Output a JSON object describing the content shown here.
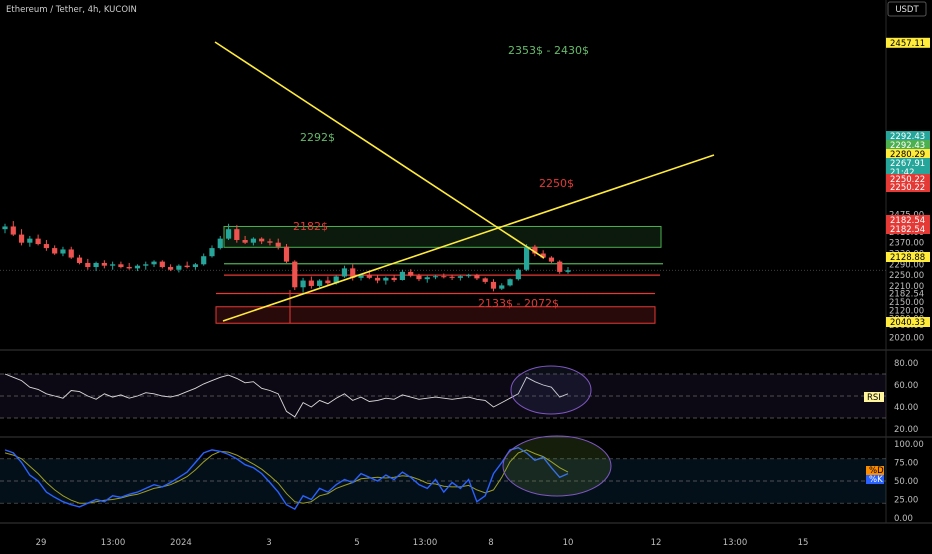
{
  "header": {
    "title": "Ethereum / Tether, 4h, KUCOIN",
    "currency_button": "USDT"
  },
  "colors": {
    "bull": "#26a69a",
    "bear": "#ef5350",
    "yellow": "#ffeb3b",
    "green_zone": "#4caf50",
    "red_zone": "#e53935",
    "rsi_line": "#d9d9d9",
    "stoch_k": "#2962ff",
    "stoch_d": "#9e9d24"
  },
  "price_axis": {
    "ticks": [
      "2475.00",
      "2410.00",
      "2370.00",
      "2330.00",
      "2290.00",
      "2250.00",
      "2210.00",
      "2182.54",
      "2150.00",
      "2120.00",
      "2090.00",
      "2066.00",
      "2020.00"
    ],
    "badges": [
      {
        "text": "2457.11",
        "bg": "#ffeb3b",
        "fg": "#000"
      },
      {
        "text": "2292.43",
        "bg": "#26a69a",
        "fg": "#fff"
      },
      {
        "text": "2292.43",
        "bg": "#4caf50",
        "fg": "#fff"
      },
      {
        "text": "2280.29",
        "bg": "#ffeb3b",
        "fg": "#000"
      },
      {
        "text": "2267.91",
        "bg": "#26a69a",
        "fg": "#fff"
      },
      {
        "text": "21:42",
        "bg": "#26a69a",
        "fg": "#fff"
      },
      {
        "text": "2250.22",
        "bg": "#e53935",
        "fg": "#fff"
      },
      {
        "text": "2250.22",
        "bg": "#e53935",
        "fg": "#fff"
      },
      {
        "text": "2182.54",
        "bg": "#e53935",
        "fg": "#fff"
      },
      {
        "text": "2182.54",
        "bg": "#e53935",
        "fg": "#fff"
      },
      {
        "text": "2128.88",
        "bg": "#ffeb3b",
        "fg": "#000"
      },
      {
        "text": "2040.33",
        "bg": "#ffeb3b",
        "fg": "#000"
      }
    ]
  },
  "annotations": {
    "supply_zone": "2353$ - 2430$",
    "demand_zone": "2133$ - 2072$",
    "level_2292": "2292$",
    "level_2250": "2250$",
    "level_2182": "2182$"
  },
  "rsi_panel": {
    "ticks": [
      "80.00",
      "60.00",
      "40.00",
      "20.00"
    ],
    "label": "RSI"
  },
  "stoch_panel": {
    "ticks": [
      "100.00",
      "75.00",
      "50.00",
      "25.00",
      "0.00"
    ],
    "label_d": "%D",
    "label_k": "%K"
  },
  "time_axis": {
    "labels": [
      "29",
      "13:00",
      "2024",
      "3",
      "5",
      "13:00",
      "8",
      "10",
      "12",
      "13:00",
      "15"
    ]
  },
  "chart_data": {
    "type": "candlestick",
    "symbol": "ETH/USDT",
    "interval": "4h",
    "exchange": "KUCOIN",
    "candles": [
      [
        2420,
        2440,
        2405,
        2430
      ],
      [
        2430,
        2450,
        2395,
        2400
      ],
      [
        2400,
        2420,
        2360,
        2370
      ],
      [
        2370,
        2395,
        2355,
        2385
      ],
      [
        2385,
        2400,
        2360,
        2365
      ],
      [
        2365,
        2380,
        2340,
        2350
      ],
      [
        2350,
        2360,
        2325,
        2330
      ],
      [
        2330,
        2355,
        2320,
        2345
      ],
      [
        2345,
        2355,
        2310,
        2315
      ],
      [
        2315,
        2325,
        2290,
        2295
      ],
      [
        2295,
        2310,
        2270,
        2280
      ],
      [
        2280,
        2300,
        2265,
        2295
      ],
      [
        2295,
        2305,
        2275,
        2285
      ],
      [
        2285,
        2300,
        2270,
        2290
      ],
      [
        2290,
        2300,
        2275,
        2280
      ],
      [
        2280,
        2295,
        2270,
        2275
      ],
      [
        2275,
        2290,
        2265,
        2285
      ],
      [
        2285,
        2300,
        2270,
        2290
      ],
      [
        2290,
        2305,
        2280,
        2300
      ],
      [
        2300,
        2305,
        2275,
        2280
      ],
      [
        2280,
        2290,
        2265,
        2270
      ],
      [
        2270,
        2290,
        2260,
        2285
      ],
      [
        2285,
        2300,
        2275,
        2280
      ],
      [
        2280,
        2295,
        2270,
        2290
      ],
      [
        2290,
        2330,
        2285,
        2320
      ],
      [
        2320,
        2360,
        2315,
        2350
      ],
      [
        2350,
        2395,
        2345,
        2385
      ],
      [
        2385,
        2440,
        2380,
        2420
      ],
      [
        2420,
        2435,
        2370,
        2380
      ],
      [
        2380,
        2395,
        2365,
        2370
      ],
      [
        2370,
        2390,
        2360,
        2385
      ],
      [
        2385,
        2390,
        2365,
        2375
      ],
      [
        2375,
        2385,
        2360,
        2370
      ],
      [
        2370,
        2385,
        2345,
        2355
      ],
      [
        2355,
        2365,
        2295,
        2300
      ],
      [
        2300,
        2305,
        2195,
        2205
      ],
      [
        2205,
        2240,
        2185,
        2230
      ],
      [
        2230,
        2245,
        2200,
        2210
      ],
      [
        2210,
        2235,
        2205,
        2230
      ],
      [
        2230,
        2245,
        2210,
        2220
      ],
      [
        2220,
        2250,
        2215,
        2245
      ],
      [
        2245,
        2285,
        2240,
        2275
      ],
      [
        2275,
        2290,
        2230,
        2240
      ],
      [
        2240,
        2255,
        2230,
        2250
      ],
      [
        2250,
        2265,
        2235,
        2240
      ],
      [
        2240,
        2250,
        2220,
        2230
      ],
      [
        2230,
        2245,
        2215,
        2240
      ],
      [
        2240,
        2250,
        2225,
        2232
      ],
      [
        2232,
        2270,
        2230,
        2262
      ],
      [
        2262,
        2272,
        2242,
        2248
      ],
      [
        2248,
        2255,
        2228,
        2235
      ],
      [
        2235,
        2248,
        2222,
        2242
      ],
      [
        2242,
        2252,
        2235,
        2246
      ],
      [
        2246,
        2256,
        2238,
        2244
      ],
      [
        2244,
        2252,
        2232,
        2240
      ],
      [
        2240,
        2250,
        2230,
        2246
      ],
      [
        2246,
        2255,
        2240,
        2250
      ],
      [
        2250,
        2255,
        2232,
        2238
      ],
      [
        2238,
        2242,
        2218,
        2225
      ],
      [
        2225,
        2235,
        2190,
        2200
      ],
      [
        2200,
        2220,
        2195,
        2212
      ],
      [
        2212,
        2238,
        2208,
        2235
      ],
      [
        2235,
        2275,
        2230,
        2270
      ],
      [
        2270,
        2365,
        2265,
        2355
      ],
      [
        2355,
        2362,
        2320,
        2330
      ],
      [
        2330,
        2342,
        2310,
        2315
      ],
      [
        2315,
        2320,
        2295,
        2300
      ],
      [
        2300,
        2305,
        2255,
        2262
      ],
      [
        2262,
        2280,
        2255,
        2268
      ]
    ],
    "horizontal_levels": [
      2292,
      2250,
      2182
    ],
    "zones": [
      {
        "label": "2353$ - 2430$",
        "low": 2353,
        "high": 2430,
        "color": "green"
      },
      {
        "label": "2133$ - 2072$",
        "low": 2072,
        "high": 2133,
        "color": "red"
      }
    ],
    "rsi": {
      "values": [
        70,
        67,
        64,
        58,
        56,
        52,
        50,
        48,
        55,
        54,
        50,
        47,
        52,
        49,
        51,
        48,
        50,
        53,
        52,
        50,
        49,
        51,
        54,
        57,
        61,
        64,
        67,
        69,
        66,
        62,
        63,
        57,
        55,
        52,
        36,
        31,
        44,
        40,
        46,
        43,
        48,
        52,
        46,
        49,
        45,
        46,
        48,
        47,
        51,
        49,
        47,
        48,
        49,
        48,
        47,
        48,
        49,
        47,
        46,
        40,
        44,
        48,
        52,
        67,
        63,
        60,
        58,
        49,
        52
      ],
      "ylim": [
        10,
        90
      ],
      "bands": [
        70,
        50,
        30
      ]
    },
    "stochastic": {
      "k": [
        92,
        88,
        75,
        58,
        50,
        35,
        28,
        22,
        18,
        15,
        20,
        25,
        22,
        30,
        28,
        32,
        35,
        40,
        45,
        42,
        48,
        55,
        62,
        75,
        88,
        92,
        90,
        86,
        80,
        72,
        68,
        60,
        48,
        35,
        18,
        12,
        30,
        25,
        40,
        35,
        45,
        52,
        48,
        60,
        55,
        50,
        58,
        52,
        62,
        55,
        45,
        40,
        52,
        35,
        48,
        40,
        52,
        22,
        30,
        60,
        75,
        92,
        95,
        88,
        78,
        82,
        68,
        55,
        60
      ],
      "d": [
        88,
        85,
        80,
        70,
        60,
        48,
        38,
        30,
        24,
        20,
        20,
        22,
        24,
        25,
        27,
        30,
        32,
        36,
        40,
        42,
        45,
        50,
        56,
        65,
        76,
        85,
        90,
        89,
        85,
        79,
        73,
        66,
        57,
        47,
        33,
        22,
        20,
        22,
        30,
        33,
        40,
        44,
        48,
        53,
        54,
        55,
        54,
        55,
        57,
        56,
        52,
        47,
        46,
        43,
        42,
        42,
        44,
        38,
        34,
        38,
        55,
        76,
        88,
        92,
        87,
        83,
        76,
        68,
        62
      ],
      "ylim": [
        -5,
        108
      ],
      "bands": [
        80,
        50,
        20
      ]
    }
  }
}
